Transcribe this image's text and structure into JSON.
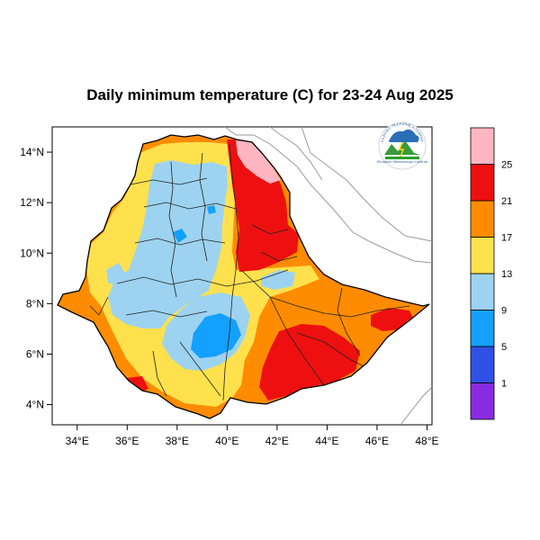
{
  "title": "Daily minimum temperature (C) for 23-24 Aug 2025",
  "map": {
    "lon_range": [
      33,
      48.2
    ],
    "lat_range": [
      3.2,
      15
    ],
    "lon_ticks": [
      34,
      36,
      38,
      40,
      42,
      44,
      46,
      48
    ],
    "lat_ticks": [
      4,
      6,
      8,
      10,
      12,
      14
    ],
    "lon_tick_labels": [
      "34°E",
      "36°E",
      "38°E",
      "40°E",
      "42°E",
      "44°E",
      "46°E",
      "48°E"
    ],
    "lat_tick_labels": [
      "4°N",
      "6°N",
      "8°N",
      "10°N",
      "12°N",
      "14°N"
    ]
  },
  "colorbar": {
    "levels": [
      "1",
      "5",
      "9",
      "13",
      "17",
      "21",
      "25"
    ],
    "colors": [
      "#8a2be2",
      "#3050e6",
      "#14a0ff",
      "#9dd3f0",
      "#ffe14d",
      "#ff8c00",
      "#ee1010",
      "#ffb6c1"
    ]
  },
  "logo": {
    "top_text": "የኢትዮጵያ ሚቲዎሮሎጂ ኢንስቲትዩት",
    "bottom_text": "Ethiopian Meteorology Institute"
  }
}
